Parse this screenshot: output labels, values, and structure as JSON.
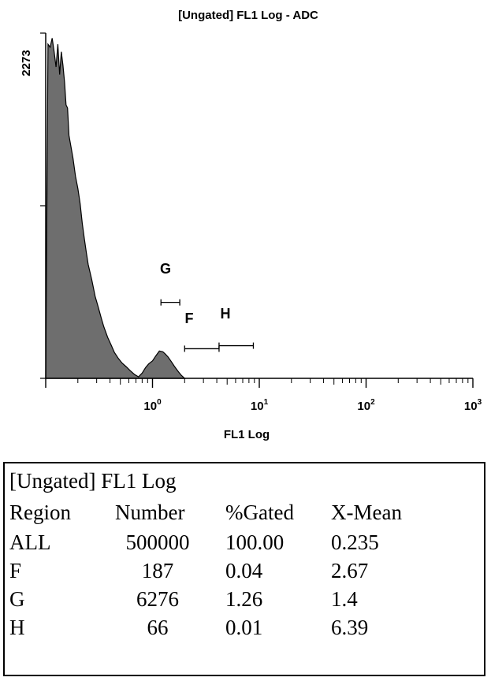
{
  "chart_data": {
    "type": "area",
    "title": "[Ungated] FL1 Log - ADC",
    "xlabel": "FL1 Log",
    "ylabel": "",
    "x_scale": "log",
    "xlim": [
      0.1,
      1000
    ],
    "ylim": [
      0,
      2273
    ],
    "y_tick_label": "2273",
    "x_ticks": [
      {
        "value": 1,
        "base": "10",
        "exp": "0"
      },
      {
        "value": 10,
        "base": "10",
        "exp": "1"
      },
      {
        "value": 100,
        "base": "10",
        "exp": "2"
      },
      {
        "value": 1000,
        "base": "10",
        "exp": "3"
      }
    ],
    "fill_color": "#6e6e6e",
    "series": [
      {
        "x": [
          0.1,
          0.105,
          0.11,
          0.115,
          0.12,
          0.125,
          0.13,
          0.135,
          0.14,
          0.145,
          0.15,
          0.155,
          0.16,
          0.165,
          0.17,
          0.18,
          0.19,
          0.2,
          0.21,
          0.22,
          0.23,
          0.24,
          0.25,
          0.27,
          0.29,
          0.31,
          0.33,
          0.35,
          0.38,
          0.41,
          0.44,
          0.48,
          0.52,
          0.57,
          0.62,
          0.68,
          0.74,
          0.8,
          0.86,
          0.92,
          1.0,
          1.08,
          1.16,
          1.25,
          1.32,
          1.4,
          1.5,
          1.6,
          1.72,
          1.86,
          2.0
        ],
        "y": [
          0,
          2200,
          2180,
          2240,
          2150,
          2050,
          2200,
          2000,
          2150,
          2060,
          1950,
          1800,
          1780,
          1600,
          1550,
          1450,
          1330,
          1250,
          1150,
          1020,
          920,
          830,
          750,
          650,
          540,
          470,
          400,
          340,
          270,
          220,
          170,
          130,
          100,
          75,
          50,
          25,
          10,
          35,
          70,
          95,
          115,
          150,
          180,
          175,
          160,
          140,
          110,
          80,
          50,
          20,
          0
        ]
      }
    ],
    "regions": [
      {
        "label": "G",
        "start": 1.2,
        "end": 1.8,
        "level": 500
      },
      {
        "label": "F",
        "start": 2.0,
        "end": 4.2,
        "level": 195
      },
      {
        "label": "H",
        "start": 4.2,
        "end": 8.8,
        "level": 215
      }
    ]
  },
  "stats": {
    "title": "[Ungated] FL1 Log",
    "headers": [
      "Region",
      "Number",
      "%Gated",
      "X-Mean"
    ],
    "rows": [
      [
        "ALL",
        "500000",
        "100.00",
        "0.235"
      ],
      [
        "F",
        "187",
        "0.04",
        "2.67"
      ],
      [
        "G",
        "6276",
        "1.26",
        "1.4"
      ],
      [
        "H",
        "66",
        "0.01",
        "6.39"
      ]
    ]
  }
}
